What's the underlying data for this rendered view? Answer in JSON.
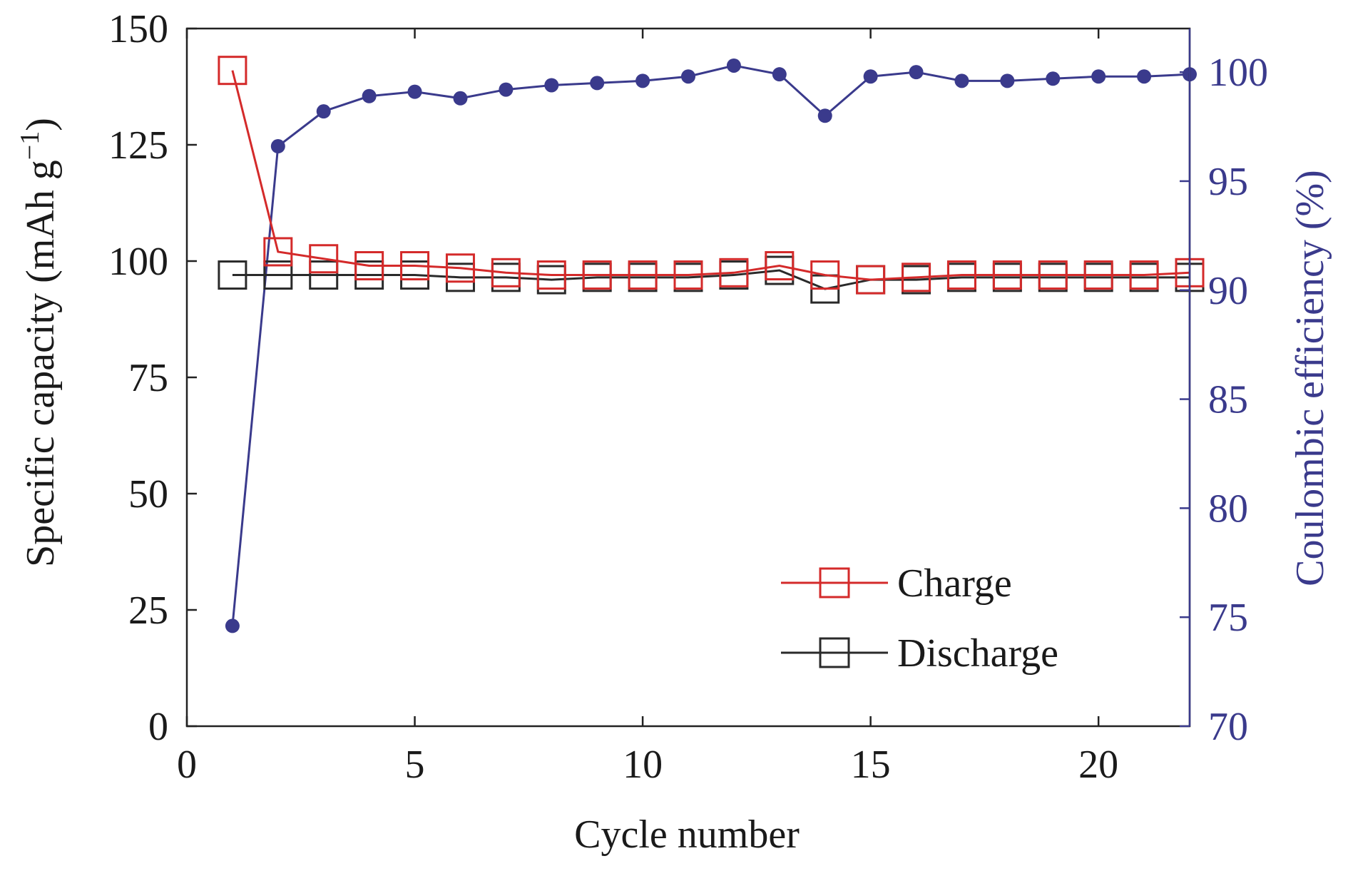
{
  "chart_data": {
    "type": "line",
    "x": [
      1,
      2,
      3,
      4,
      5,
      6,
      7,
      8,
      9,
      10,
      11,
      12,
      13,
      14,
      15,
      16,
      17,
      18,
      19,
      20,
      21,
      22
    ],
    "xlabel": "Cycle number",
    "xlim": [
      0,
      22
    ],
    "xticks": [
      0,
      5,
      10,
      15,
      20
    ],
    "ylabel_left": "Specific capacity (mAh g",
    "ylabel_left_sup": "−1",
    "ylabel_left_close": ")",
    "ylim_left": [
      0,
      150
    ],
    "yticks_left": [
      0,
      25,
      50,
      75,
      100,
      125,
      150
    ],
    "ylabel_right": "Coulombic efficiency (%)",
    "ylim_right": [
      70,
      102
    ],
    "yticks_right": [
      70,
      75,
      80,
      85,
      90,
      95,
      100
    ],
    "grid": false,
    "legend_position": "bottom-right",
    "series": [
      {
        "name": "Charge",
        "axis": "left",
        "marker": "open-square",
        "color": "#d42a2a",
        "values": [
          141,
          102,
          100.5,
          99,
          99,
          98.5,
          97.5,
          97,
          97,
          97,
          97,
          97.5,
          99,
          97,
          96,
          96.5,
          97,
          97,
          97,
          97,
          97,
          97.5
        ]
      },
      {
        "name": "Discharge",
        "axis": "left",
        "marker": "open-square",
        "color": "#2a2a2a",
        "values": [
          97,
          97,
          97,
          97,
          97,
          96.5,
          96.5,
          96,
          96.5,
          96.5,
          96.5,
          97,
          98,
          94,
          96,
          96,
          96.5,
          96.5,
          96.5,
          96.5,
          96.5,
          96.5
        ]
      },
      {
        "axis": "right",
        "marker": "filled-circle",
        "color": "#3a3a8c",
        "values": [
          74.6,
          96.6,
          98.2,
          98.9,
          99.1,
          98.8,
          99.2,
          99.4,
          99.5,
          99.6,
          99.8,
          100.3,
          99.9,
          98.0,
          99.8,
          100.0,
          99.6,
          99.6,
          99.7,
          99.8,
          99.8,
          99.9
        ]
      }
    ]
  }
}
